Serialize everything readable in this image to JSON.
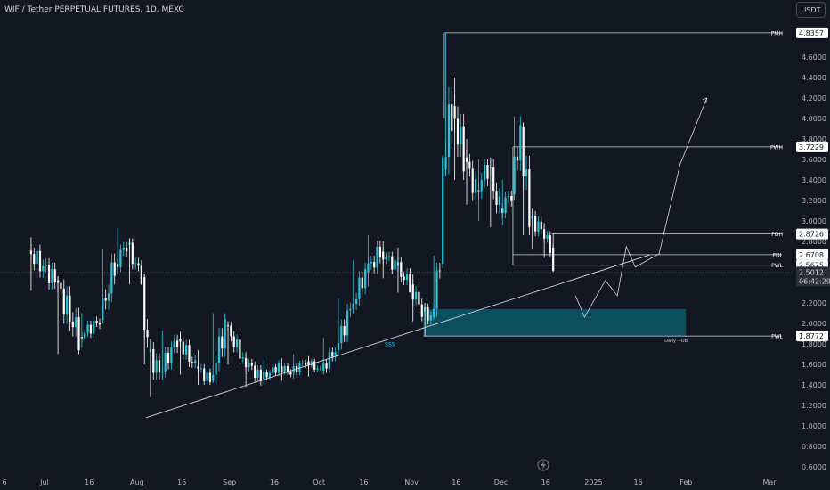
{
  "header": {
    "title": "WIF / Tether PERPETUAL FUTURES, 1D, MEXC",
    "currency_button": "USDT"
  },
  "price_scale": {
    "current_price": "2.5012",
    "countdown": "06:42:29"
  },
  "colors": {
    "background": "#131722",
    "candle_up": "#26c6da",
    "candle_down": "#ffffff",
    "ob_zone": "#0b4f5c",
    "lines": "#d1d4dc"
  },
  "chart_data": {
    "type": "candlestick",
    "symbol": "WIF / Tether PERPETUAL FUTURES",
    "interval": "1D",
    "exchange": "MEXC",
    "ylim": [
      0.6,
      5.05
    ],
    "y_ticks": [
      "4.6000",
      "4.4000",
      "4.2000",
      "4.0000",
      "3.8000",
      "3.6000",
      "3.4000",
      "3.2000",
      "3.0000",
      "2.8000",
      "2.2000",
      "2.0000",
      "1.8000",
      "1.6000",
      "1.4000",
      "1.2000",
      "1.0000",
      "0.8000",
      "0.6000"
    ],
    "x_ticks": [
      "6",
      "Jul",
      "16",
      "Aug",
      "16",
      "Sep",
      "16",
      "Oct",
      "16",
      "Nov",
      "16",
      "Dec",
      "16",
      "2025",
      "16",
      "Feb",
      "Mar"
    ],
    "levels": [
      {
        "tag": "PMH",
        "value": "4.8357",
        "start": "Nov 12"
      },
      {
        "tag": "PWH",
        "value": "3.7229",
        "start": "Dec 5"
      },
      {
        "tag": "PDH",
        "value": "2.8726",
        "start": "Dec 18"
      },
      {
        "tag": "PDL",
        "value": "2.6708",
        "start": "Dec 5"
      },
      {
        "tag": "PWL",
        "value": "2.5675",
        "start": "Dec 5"
      },
      {
        "tag": "PWL",
        "value": "1.8772",
        "start": "Nov 5"
      }
    ],
    "zone": {
      "label": "Daily +OB",
      "from": 1.8772,
      "to": 2.14,
      "start": "Nov 5",
      "end": "Feb 1"
    },
    "trendline": {
      "label": "SSS",
      "from": {
        "date": "Aug 4",
        "price": 1.08
      },
      "to": {
        "date": "Jan 20",
        "price": 2.67
      }
    },
    "projection": [
      {
        "date": "Dec 26",
        "price": 2.27
      },
      {
        "date": "Dec 29",
        "price": 2.06
      },
      {
        "date": "Jan 5",
        "price": 2.42
      },
      {
        "date": "Jan 9",
        "price": 2.27
      },
      {
        "date": "Jan 12",
        "price": 2.75
      },
      {
        "date": "Jan 15",
        "price": 2.55
      },
      {
        "date": "Jan 23",
        "price": 2.68
      },
      {
        "date": "Jan 30",
        "price": 3.55
      },
      {
        "date": "Feb 8",
        "price": 4.2
      }
    ],
    "series": [
      {
        "label": "Jun 26",
        "ohlc": [
          2.71,
          2.84,
          2.32,
          2.42
        ]
      },
      {
        "label": "Jul 5",
        "ohlc": [
          2.42,
          2.46,
          1.7,
          1.87
        ]
      },
      {
        "label": "Jul 13",
        "ohlc": [
          1.87,
          2.1,
          1.76,
          2.03
        ]
      },
      {
        "label": "Jul 20",
        "ohlc": [
          2.03,
          2.72,
          2.0,
          2.58
        ]
      },
      {
        "label": "Jul 25",
        "ohlc": [
          2.58,
          2.93,
          2.48,
          2.77
        ]
      },
      {
        "label": "Jul 29",
        "ohlc": [
          2.77,
          2.83,
          2.38,
          2.45
        ]
      },
      {
        "label": "Aug 3",
        "ohlc": [
          2.45,
          2.48,
          1.6,
          1.72
        ]
      },
      {
        "label": "Aug 5",
        "ohlc": [
          1.72,
          1.85,
          1.28,
          1.52
        ]
      },
      {
        "label": "Aug 9",
        "ohlc": [
          1.52,
          1.93,
          1.45,
          1.85
        ]
      },
      {
        "label": "Aug 15",
        "ohlc": [
          1.85,
          1.92,
          1.5,
          1.58
        ]
      },
      {
        "label": "Aug 21",
        "ohlc": [
          1.58,
          1.74,
          1.4,
          1.44
        ]
      },
      {
        "label": "Aug 26",
        "ohlc": [
          1.44,
          2.1,
          1.42,
          1.98
        ]
      },
      {
        "label": "Aug 31",
        "ohlc": [
          1.98,
          2.02,
          1.6,
          1.66
        ]
      },
      {
        "label": "Sep 6",
        "ohlc": [
          1.66,
          1.72,
          1.38,
          1.46
        ]
      },
      {
        "label": "Sep 12",
        "ohlc": [
          1.46,
          1.64,
          1.4,
          1.58
        ]
      },
      {
        "label": "Sep 18",
        "ohlc": [
          1.58,
          1.66,
          1.44,
          1.52
        ]
      },
      {
        "label": "Sep 22",
        "ohlc": [
          1.52,
          1.7,
          1.46,
          1.63
        ]
      },
      {
        "label": "Sep 27",
        "ohlc": [
          1.63,
          1.68,
          1.48,
          1.54
        ]
      },
      {
        "label": "Oct 2",
        "ohlc": [
          1.54,
          1.86,
          1.5,
          1.74
        ]
      },
      {
        "label": "Oct 7",
        "ohlc": [
          1.74,
          2.24,
          1.7,
          2.14
        ]
      },
      {
        "label": "Oct 12",
        "ohlc": [
          2.14,
          2.62,
          2.1,
          2.5
        ]
      },
      {
        "label": "Oct 17",
        "ohlc": [
          2.5,
          2.86,
          2.36,
          2.7
        ]
      },
      {
        "label": "Oct 22",
        "ohlc": [
          2.7,
          2.8,
          2.44,
          2.56
        ]
      },
      {
        "label": "Oct 27",
        "ohlc": [
          2.56,
          2.74,
          2.3,
          2.38
        ]
      },
      {
        "label": "Nov 1",
        "ohlc": [
          2.38,
          2.48,
          2.02,
          2.12
        ]
      },
      {
        "label": "Nov 5",
        "ohlc": [
          2.12,
          2.2,
          1.88,
          2.06
        ]
      },
      {
        "label": "Nov 8",
        "ohlc": [
          2.06,
          2.66,
          2.04,
          2.58
        ]
      },
      {
        "label": "Nov 11",
        "ohlc": [
          2.58,
          3.64,
          2.54,
          3.5
        ]
      },
      {
        "label": "Nov 12",
        "ohlc": [
          3.5,
          4.84,
          3.44,
          4.12
        ]
      },
      {
        "label": "Nov 15",
        "ohlc": [
          4.12,
          4.4,
          3.4,
          3.62
        ]
      },
      {
        "label": "Nov 19",
        "ohlc": [
          3.62,
          3.8,
          3.16,
          3.3
        ]
      },
      {
        "label": "Nov 23",
        "ohlc": [
          3.3,
          3.6,
          3.0,
          3.52
        ]
      },
      {
        "label": "Nov 27",
        "ohlc": [
          3.52,
          3.62,
          2.94,
          3.12
        ]
      },
      {
        "label": "Dec 1",
        "ohlc": [
          3.12,
          3.4,
          2.96,
          3.26
        ]
      },
      {
        "label": "Dec 5",
        "ohlc": [
          3.26,
          4.02,
          3.2,
          3.92
        ]
      },
      {
        "label": "Dec 8",
        "ohlc": [
          3.92,
          3.96,
          2.86,
          3.02
        ]
      },
      {
        "label": "Dec 11",
        "ohlc": [
          3.02,
          3.12,
          2.72,
          2.92
        ]
      },
      {
        "label": "Dec 15",
        "ohlc": [
          2.92,
          2.98,
          2.64,
          2.74
        ]
      },
      {
        "label": "Dec 18",
        "ohlc": [
          2.74,
          2.87,
          2.5,
          2.5
        ]
      }
    ]
  }
}
